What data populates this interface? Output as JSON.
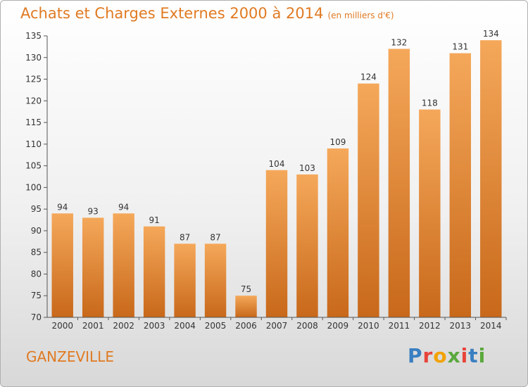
{
  "title": "Achats et Charges Externes 2000 à 2014",
  "unit": "(en milliers d'€)",
  "place": "GANZEVILLE",
  "logo": {
    "text": "Proxiti",
    "letter_colors": [
      "#3a7fc1",
      "#e8443a",
      "#f2a200",
      "#5aa83c",
      "#e8443a",
      "#3a7fc1",
      "#5aa83c"
    ]
  },
  "colors": {
    "bar_top": "#f5a85a",
    "bar_bottom": "#c8681a",
    "title": "#e07a22"
  },
  "chart_data": {
    "type": "bar",
    "title": "Achats et Charges Externes 2000 à 2014",
    "categories": [
      "2000",
      "2001",
      "2002",
      "2003",
      "2004",
      "2005",
      "2006",
      "2007",
      "2008",
      "2009",
      "2010",
      "2011",
      "2012",
      "2013",
      "2014"
    ],
    "values": [
      94,
      93,
      94,
      91,
      87,
      87,
      75,
      104,
      103,
      109,
      124,
      132,
      118,
      131,
      134
    ],
    "ylim": [
      70,
      135
    ],
    "yticks": [
      70,
      75,
      80,
      85,
      90,
      95,
      100,
      105,
      110,
      115,
      120,
      125,
      130,
      135
    ],
    "grid": false
  }
}
